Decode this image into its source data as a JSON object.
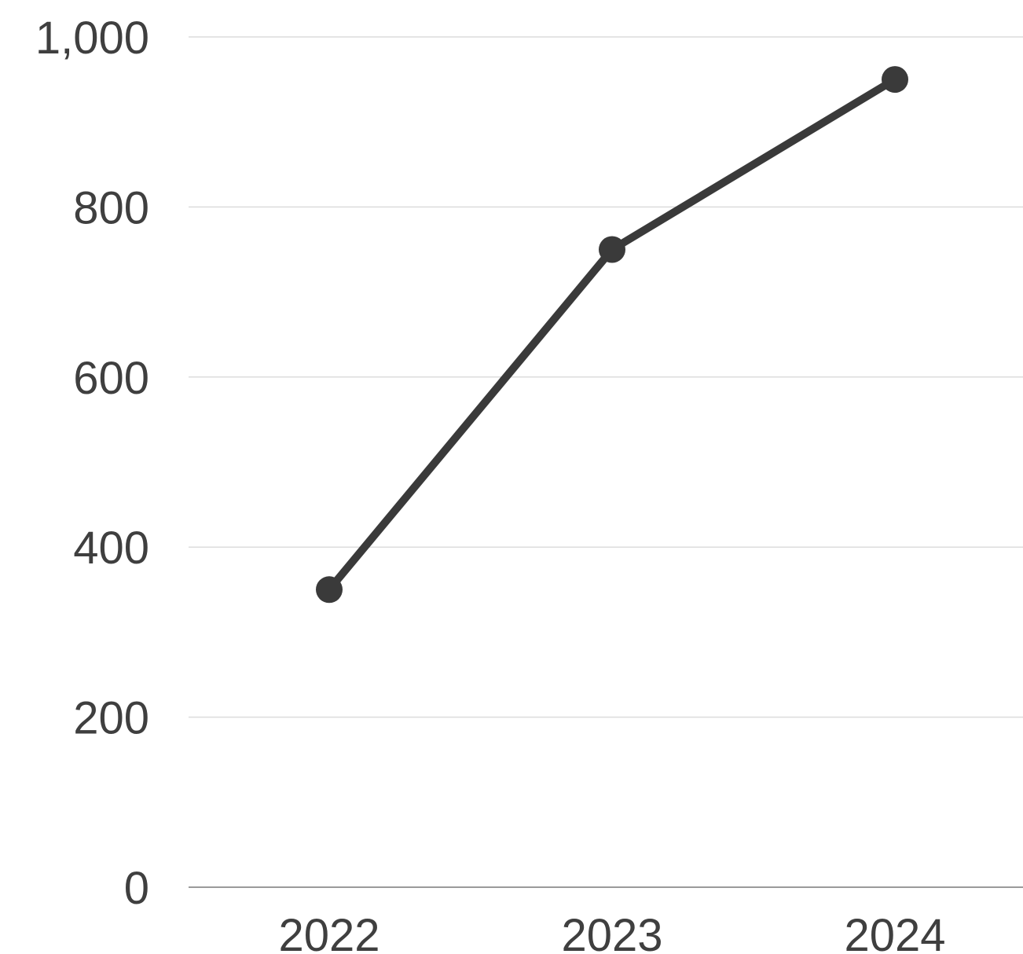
{
  "chart_data": {
    "type": "line",
    "categories": [
      "2022",
      "2023",
      "2024"
    ],
    "series": [
      {
        "values": [
          350,
          750,
          950
        ]
      }
    ],
    "title": "",
    "xlabel": "",
    "ylabel": "",
    "ylim": [
      0,
      1000
    ],
    "yticks": [
      0,
      200,
      400,
      600,
      800,
      1000
    ],
    "ytick_labels": [
      "0",
      "200",
      "400",
      "600",
      "800",
      "1,000"
    ],
    "grid": true,
    "legend": "none",
    "colors": {
      "line": "#3a3a3a",
      "grid": "#dcdcdc",
      "baseline": "#9a9a9a",
      "text": "#3f3f3f"
    }
  }
}
